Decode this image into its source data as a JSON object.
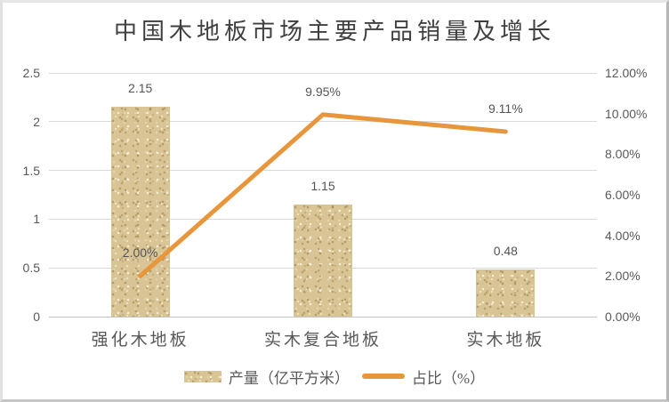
{
  "chart_data": {
    "type": "combo-bar-line",
    "title": "中国木地板市场主要产品销量及增长",
    "categories": [
      "强化木地板",
      "实木复合地板",
      "实木地板"
    ],
    "series": [
      {
        "name": "产量（亿平方米）",
        "type": "bar",
        "axis": "left",
        "values": [
          2.15,
          1.15,
          0.48
        ],
        "labels": [
          "2.15",
          "1.15",
          "0.48"
        ],
        "color": "#D8C494",
        "fill_style": "speckled-sand-texture"
      },
      {
        "name": "占比（%）",
        "type": "line",
        "axis": "right",
        "values": [
          2.0,
          9.95,
          9.11
        ],
        "labels": [
          "2.00%",
          "9.95%",
          "9.11%"
        ],
        "color": "#E8963C"
      }
    ],
    "left_axis": {
      "min": 0,
      "max": 2.5,
      "ticks": [
        "2.5",
        "2",
        "1.5",
        "1",
        "0.5",
        "0"
      ],
      "tick_values": [
        2.5,
        2,
        1.5,
        1,
        0.5,
        0
      ]
    },
    "right_axis": {
      "min": 0,
      "max": 12,
      "unit": "%",
      "ticks": [
        "12.00%",
        "10.00%",
        "8.00%",
        "6.00%",
        "4.00%",
        "2.00%",
        "0.00%"
      ],
      "tick_values": [
        12,
        10,
        8,
        6,
        4,
        2,
        0
      ]
    },
    "grid": "horizontal",
    "legend_position": "bottom",
    "colors": {
      "bar_fill": "#D8C494",
      "line": "#E8963C",
      "gridline": "#D9D9D9",
      "axis_text": "#595959",
      "title_text": "#3F3F3F"
    }
  }
}
